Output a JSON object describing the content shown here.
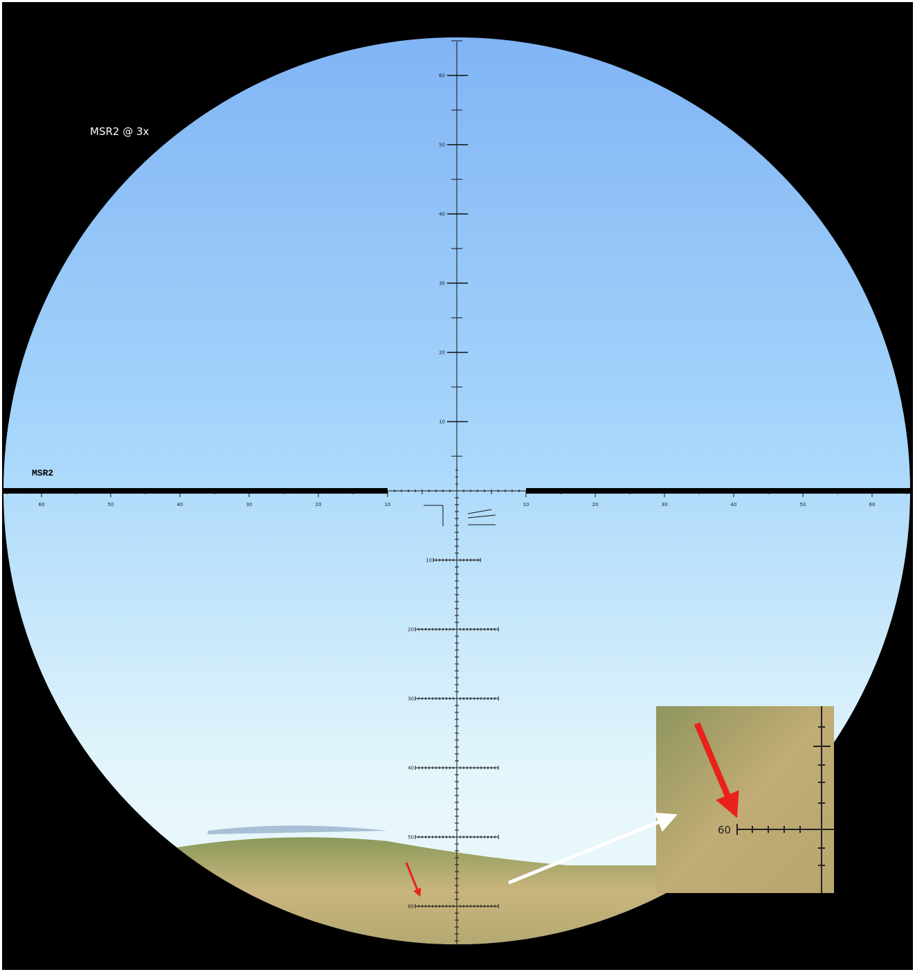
{
  "caption": "MSR2 @ 3x",
  "reticle_name": "MSR2",
  "upper_labels": [
    60,
    50,
    40,
    30,
    20,
    10
  ],
  "left_labels": [
    60,
    50,
    40,
    30,
    20,
    10
  ],
  "right_labels": [
    10,
    20,
    30,
    40,
    50,
    60
  ],
  "lower_labels": [
    10,
    20,
    30,
    40,
    50,
    60
  ],
  "inset_label": 60
}
